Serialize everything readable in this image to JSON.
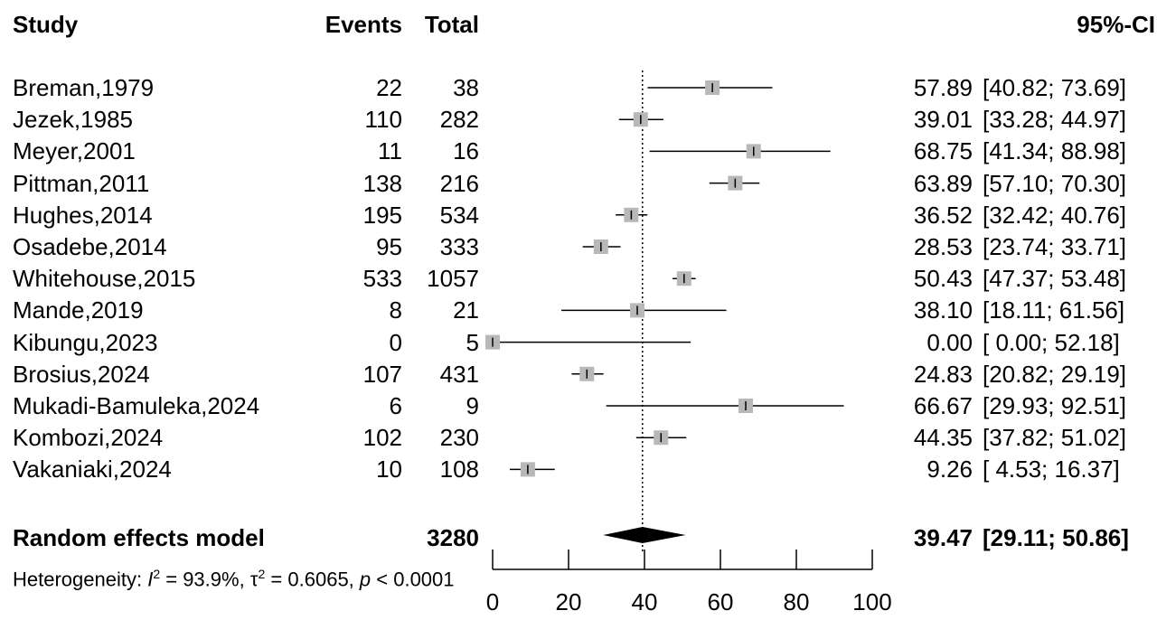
{
  "chart_data": {
    "type": "forest",
    "headers": {
      "study": "Study",
      "events": "Events",
      "total": "Total",
      "ci": "95%-CI"
    },
    "studies": [
      {
        "study": "Breman,1979",
        "events": "22",
        "total": "38",
        "estimate": 57.89,
        "lower": 40.82,
        "upper": 73.69,
        "est_text": "57.89",
        "ci_text": "[40.82; 73.69]"
      },
      {
        "study": "Jezek,1985",
        "events": "110",
        "total": "282",
        "estimate": 39.01,
        "lower": 33.28,
        "upper": 44.97,
        "est_text": "39.01",
        "ci_text": "[33.28; 44.97]"
      },
      {
        "study": "Meyer,2001",
        "events": "11",
        "total": "16",
        "estimate": 68.75,
        "lower": 41.34,
        "upper": 88.98,
        "est_text": "68.75",
        "ci_text": "[41.34; 88.98]"
      },
      {
        "study": "Pittman,2011",
        "events": "138",
        "total": "216",
        "estimate": 63.89,
        "lower": 57.1,
        "upper": 70.3,
        "est_text": "63.89",
        "ci_text": "[57.10; 70.30]"
      },
      {
        "study": "Hughes,2014",
        "events": "195",
        "total": "534",
        "estimate": 36.52,
        "lower": 32.42,
        "upper": 40.76,
        "est_text": "36.52",
        "ci_text": "[32.42; 40.76]"
      },
      {
        "study": "Osadebe,2014",
        "events": "95",
        "total": "333",
        "estimate": 28.53,
        "lower": 23.74,
        "upper": 33.71,
        "est_text": "28.53",
        "ci_text": "[23.74; 33.71]"
      },
      {
        "study": "Whitehouse,2015",
        "events": "533",
        "total": "1057",
        "estimate": 50.43,
        "lower": 47.37,
        "upper": 53.48,
        "est_text": "50.43",
        "ci_text": "[47.37; 53.48]"
      },
      {
        "study": "Mande,2019",
        "events": "8",
        "total": "21",
        "estimate": 38.1,
        "lower": 18.11,
        "upper": 61.56,
        "est_text": "38.10",
        "ci_text": "[18.11; 61.56]"
      },
      {
        "study": "Kibungu,2023",
        "events": "0",
        "total": "5",
        "estimate": 0.0,
        "lower": 0.0,
        "upper": 52.18,
        "est_text": "0.00",
        "ci_text": "[ 0.00; 52.18]"
      },
      {
        "study": "Brosius,2024",
        "events": "107",
        "total": "431",
        "estimate": 24.83,
        "lower": 20.82,
        "upper": 29.19,
        "est_text": "24.83",
        "ci_text": "[20.82; 29.19]"
      },
      {
        "study": "Mukadi-Bamuleka,2024",
        "events": "6",
        "total": "9",
        "estimate": 66.67,
        "lower": 29.93,
        "upper": 92.51,
        "est_text": "66.67",
        "ci_text": "[29.93; 92.51]"
      },
      {
        "study": "Kombozi,2024",
        "events": "102",
        "total": "230",
        "estimate": 44.35,
        "lower": 37.82,
        "upper": 51.02,
        "est_text": "44.35",
        "ci_text": "[37.82; 51.02]"
      },
      {
        "study": "Vakaniaki,2024",
        "events": "10",
        "total": "108",
        "estimate": 9.26,
        "lower": 4.53,
        "upper": 16.37,
        "est_text": "9.26",
        "ci_text": "[ 4.53; 16.37]"
      }
    ],
    "summary": {
      "label": "Random effects model",
      "total": "3280",
      "estimate": 39.47,
      "lower": 29.11,
      "upper": 50.86,
      "est_text": "39.47",
      "ci_text": "[29.11; 50.86]"
    },
    "heterogeneity": {
      "prefix": "Heterogeneity: ",
      "i2_symbol": "I",
      "i2_sup": "2",
      "i2_value": " = 93.9%, ",
      "tau_symbol": "τ",
      "tau_sup": "2",
      "tau_value": " = 0.6065, ",
      "p_symbol": "p",
      "p_value": " < 0.0001"
    },
    "x_axis": {
      "ticks": [
        0,
        20,
        40,
        60,
        80,
        100
      ],
      "tick_labels": [
        "0",
        "20",
        "40",
        "60",
        "80",
        "100"
      ],
      "range": [
        0,
        100
      ]
    },
    "reference_line": 39.47
  }
}
